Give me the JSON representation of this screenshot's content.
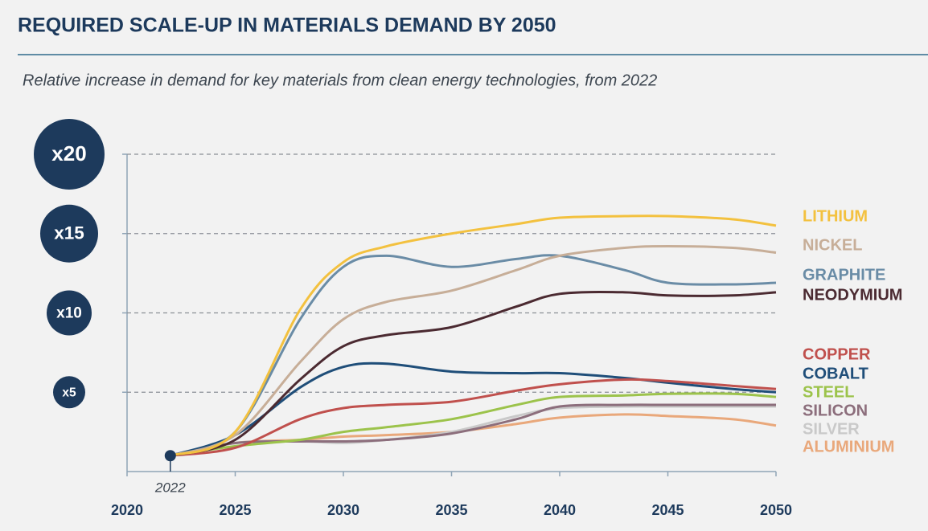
{
  "chart_data": {
    "type": "line",
    "title": "REQUIRED SCALE-UP IN MATERIALS DEMAND BY 2050",
    "subtitle": "Relative increase in demand for key materials from clean energy technologies, from 2022",
    "x": [
      2022,
      2025,
      2028,
      2030,
      2032,
      2035,
      2038,
      2040,
      2043,
      2045,
      2048,
      2050
    ],
    "xlim": [
      2020,
      2050
    ],
    "xticks": [
      2020,
      2025,
      2030,
      2035,
      2040,
      2045,
      2050
    ],
    "ylim": [
      0,
      20
    ],
    "yticks": [
      {
        "value": 5,
        "label": "x5"
      },
      {
        "value": 10,
        "label": "x10"
      },
      {
        "value": 15,
        "label": "x15"
      },
      {
        "value": 20,
        "label": "x20"
      }
    ],
    "grid": true,
    "series": [
      {
        "name": "LITHIUM",
        "color": "#f3c13f",
        "values": [
          1,
          2.5,
          10.2,
          13.2,
          14.2,
          15,
          15.6,
          16,
          16.1,
          16.1,
          15.9,
          15.5
        ]
      },
      {
        "name": "NICKEL",
        "color": "#c7ae98",
        "values": [
          1,
          2.3,
          6.9,
          9.6,
          10.7,
          11.4,
          12.7,
          13.6,
          14.1,
          14.2,
          14.1,
          13.8
        ]
      },
      {
        "name": "GRAPHITE",
        "color": "#6a8ca6",
        "values": [
          1,
          2.5,
          9.6,
          12.9,
          13.6,
          12.9,
          13.4,
          13.6,
          12.7,
          11.9,
          11.8,
          11.9
        ]
      },
      {
        "name": "NEODYMIUM",
        "color": "#4b2a31",
        "values": [
          1,
          2,
          5.8,
          7.9,
          8.6,
          9.1,
          10.4,
          11.2,
          11.3,
          11.1,
          11.1,
          11.3
        ]
      },
      {
        "name": "COPPER",
        "color": "#c0504d",
        "values": [
          1,
          1.5,
          3.3,
          4,
          4.2,
          4.4,
          5.1,
          5.5,
          5.8,
          5.7,
          5.4,
          5.2
        ]
      },
      {
        "name": "COBALT",
        "color": "#1f4e79",
        "values": [
          1,
          2.3,
          5.3,
          6.6,
          6.8,
          6.3,
          6.2,
          6.2,
          5.9,
          5.6,
          5.2,
          5
        ]
      },
      {
        "name": "STEEL",
        "color": "#9cc34b",
        "values": [
          1,
          1.6,
          2,
          2.5,
          2.8,
          3.3,
          4.2,
          4.7,
          4.8,
          4.9,
          4.9,
          4.7
        ]
      },
      {
        "name": "SILICON",
        "color": "#8c6e7c",
        "values": [
          1,
          1.8,
          1.9,
          1.9,
          2,
          2.4,
          3.3,
          4.1,
          4.2,
          4.2,
          4.2,
          4.2
        ]
      },
      {
        "name": "SILVER",
        "color": "#c9c9c9",
        "values": [
          1,
          1.8,
          1.9,
          1.8,
          2,
          2.5,
          3.5,
          4,
          4.1,
          4.1,
          4.1,
          4.1
        ]
      },
      {
        "name": "ALUMINIUM",
        "color": "#e9a87b",
        "values": [
          1,
          1.8,
          2,
          2.2,
          2.3,
          2.5,
          3,
          3.4,
          3.6,
          3.5,
          3.3,
          2.9
        ]
      }
    ]
  }
}
